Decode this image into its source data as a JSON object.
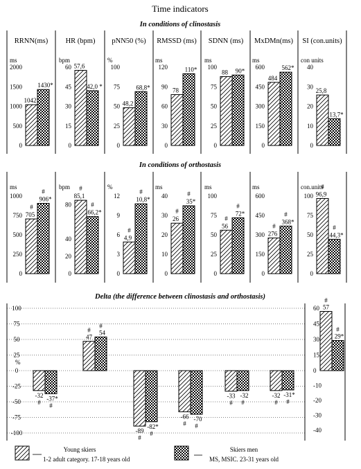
{
  "title": "Time indicators",
  "sections": {
    "clino": "In conditions of clinostasis",
    "ortho": "In conditions of orthostasis",
    "delta": "Delta (the difference between clinostasis and orthostasis)"
  },
  "legend": {
    "young_line1": "Young skiers",
    "young_line2": "1-2 adult category. 17-18 years old",
    "men_line1": "Skiers men",
    "men_line2": "MS, MSIC. 23-31 years old"
  },
  "colors": {
    "ink": "#000000",
    "background": "#ffffff"
  },
  "chart_data": [
    {
      "type": "bar",
      "name": "clinostasis",
      "series_keys": [
        "young",
        "men"
      ],
      "panels": [
        {
          "title": "RRNN(ms)",
          "unit": "ms",
          "ylim": [
            0,
            2000
          ],
          "ticks": [
            "2000",
            "1500",
            "1000",
            "500",
            "0"
          ],
          "young": 1042,
          "men": 1430,
          "young_label": "1042",
          "men_label": "1430*"
        },
        {
          "title": "HR (bpm)",
          "unit": "bpm",
          "ylim": [
            0,
            60
          ],
          "ticks": [
            "60",
            "45",
            "30",
            "15",
            "0"
          ],
          "young": 57.6,
          "men": 42.0,
          "young_label": "57,6",
          "men_label": "42,0 *"
        },
        {
          "title": "pNN50 (%)",
          "unit": "%",
          "ylim": [
            0,
            100
          ],
          "ticks": [
            "100",
            "75",
            "50",
            "25",
            "0"
          ],
          "young": 48.2,
          "men": 68.8,
          "young_label": "48,2",
          "men_label": "68,8*"
        },
        {
          "title": "RMSSD (ms)",
          "unit": "ms",
          "ylim": [
            0,
            120
          ],
          "ticks": [
            "120",
            "90",
            "60",
            "30",
            "0"
          ],
          "young": 78,
          "men": 110,
          "young_label": "78",
          "men_label": "110*"
        },
        {
          "title": "SDNN (ms)",
          "unit": "ms",
          "ylim": [
            0,
            100
          ],
          "ticks": [
            "100",
            "75",
            "50",
            "25",
            "0"
          ],
          "young": 88,
          "men": 90,
          "young_label": "88",
          "men_label": "90*"
        },
        {
          "title": "MxDMn(ms)",
          "unit": "ms",
          "ylim": [
            0,
            600
          ],
          "ticks": [
            "600",
            "450",
            "300",
            "150",
            "0"
          ],
          "young": 484,
          "men": 562,
          "young_label": "484",
          "men_label": "562*"
        },
        {
          "title": "SI (con.units)",
          "unit": "con units",
          "ylim": [
            0,
            40
          ],
          "ticks": [
            "40",
            "30",
            "20",
            "10",
            "0"
          ],
          "young": 25.8,
          "men": 13.7,
          "young_label": "25,8",
          "men_label": "13,7*"
        }
      ]
    },
    {
      "type": "bar",
      "name": "orthostasis",
      "series_keys": [
        "young",
        "men"
      ],
      "panels": [
        {
          "title": "",
          "unit": "ms",
          "ylim": [
            0,
            1000
          ],
          "ticks": [
            "1000",
            "750",
            "500",
            "250",
            "0"
          ],
          "young": 705,
          "men": 906,
          "young_label": "705",
          "men_label": "906*",
          "young_mark": "#",
          "men_mark": "#"
        },
        {
          "title": "",
          "unit": "bpm",
          "ylim": [
            0,
            90
          ],
          "ticks": [
            "80",
            "40",
            "20",
            "0"
          ],
          "tick_values": [
            80,
            40,
            20,
            0
          ],
          "young": 85.1,
          "men": 66.2,
          "young_label": "85,1",
          "men_label": "66,2*",
          "young_mark": "#",
          "men_mark": "#"
        },
        {
          "title": "",
          "unit": "%",
          "ylim": [
            0,
            12
          ],
          "ticks": [
            "12",
            "9",
            "6",
            "3",
            "0"
          ],
          "young": 4.9,
          "men": 10.8,
          "young_label": "4,9",
          "men_label": "10,8*",
          "young_mark": "#",
          "men_mark": "#"
        },
        {
          "title": "",
          "unit": "ms",
          "ylim": [
            0,
            40
          ],
          "ticks": [
            "40",
            "30",
            "20",
            "10",
            "0"
          ],
          "young": 26,
          "men": 35,
          "young_label": "26",
          "men_label": "35*",
          "young_mark": "#",
          "men_mark": "#"
        },
        {
          "title": "",
          "unit": "ms",
          "ylim": [
            0,
            100
          ],
          "ticks": [
            "100",
            "75",
            "50",
            "25",
            "0"
          ],
          "young": 56,
          "men": 72,
          "young_label": "56",
          "men_label": "72*",
          "young_mark": "#",
          "men_mark": "#"
        },
        {
          "title": "",
          "unit": "ms",
          "ylim": [
            0,
            600
          ],
          "ticks": [
            "600",
            "450",
            "300",
            "150",
            "0"
          ],
          "young": 276,
          "men": 368,
          "young_label": "276",
          "men_label": "368*",
          "young_mark": "#",
          "men_mark": "#"
        },
        {
          "title": "",
          "unit": "con.units",
          "ylim": [
            0,
            100
          ],
          "ticks": [
            "100",
            "75",
            "50",
            "25",
            "0"
          ],
          "young": 96.9,
          "men": 44.3,
          "young_label": "96,9",
          "men_label": "44,3*",
          "young_mark": "#",
          "men_mark": "#"
        }
      ]
    },
    {
      "type": "bar",
      "name": "delta",
      "series_keys": [
        "young",
        "men"
      ],
      "left_axis": {
        "unit": "%",
        "ylim": [
          -100,
          100
        ],
        "ticks": [
          "100",
          "75",
          "50",
          "25",
          "0",
          "-25",
          "-50",
          "-75",
          "-100"
        ]
      },
      "right_axis": {
        "ylim": [
          -40,
          60
        ],
        "ticks": [
          "60",
          "45",
          "30",
          "15",
          "0",
          "-10",
          "-20",
          "-30",
          "-40"
        ]
      },
      "groups": [
        {
          "young": -32,
          "men": -37,
          "young_label": "-32",
          "men_label": "-37*",
          "young_mark": "#",
          "men_mark": "#"
        },
        {
          "young": 47,
          "men": 54,
          "young_label": "47",
          "men_label": "54",
          "young_mark": "#",
          "men_mark": "#"
        },
        {
          "young": -89,
          "men": -82,
          "young_label": "-89",
          "men_label": "-82*",
          "young_mark": "#",
          "men_mark": "#"
        },
        {
          "young": -66,
          "men": -70,
          "young_label": "-66",
          "men_label": "-70",
          "young_mark": "#",
          "men_mark": "#"
        },
        {
          "young": -33,
          "men": -32,
          "young_label": "-33",
          "men_label": "-32",
          "young_mark": "#",
          "men_mark": "#"
        },
        {
          "young": -32,
          "men": -31,
          "young_label": "-32",
          "men_label": "-31*",
          "young_mark": "#",
          "men_mark": "#"
        },
        {
          "young": 57,
          "men": 29,
          "young_label": "57",
          "men_label": "29*",
          "young_mark": "#",
          "men_mark": "#",
          "axis": "right"
        }
      ]
    }
  ]
}
